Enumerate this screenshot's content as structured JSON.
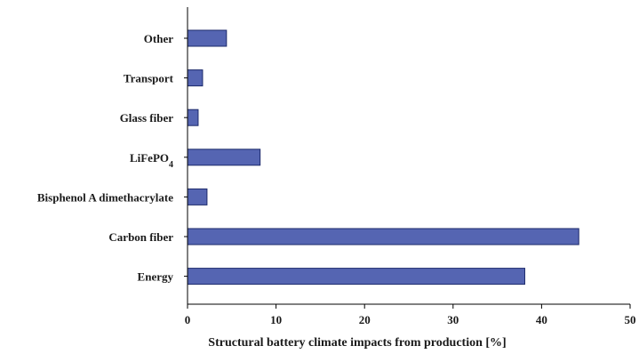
{
  "chart_data": {
    "type": "bar",
    "orientation": "horizontal",
    "categories": [
      "Other",
      "Transport",
      "Glass fiber",
      "LiFePO4",
      "Bisphenol A dimethacrylate",
      "Carbon fiber",
      "Energy"
    ],
    "values": [
      4.4,
      1.7,
      1.2,
      8.2,
      2.2,
      44.2,
      38.1
    ],
    "title": "",
    "xlabel": "Structural battery climate impacts from production [%]",
    "ylabel": "",
    "xlim": [
      0,
      50
    ],
    "x_ticks": [
      "0",
      "10",
      "20",
      "30",
      "40",
      "50"
    ],
    "grid": false,
    "legend": "none",
    "bar_color": "#5565b2",
    "bar_edge_color": "#1c2a6b"
  }
}
